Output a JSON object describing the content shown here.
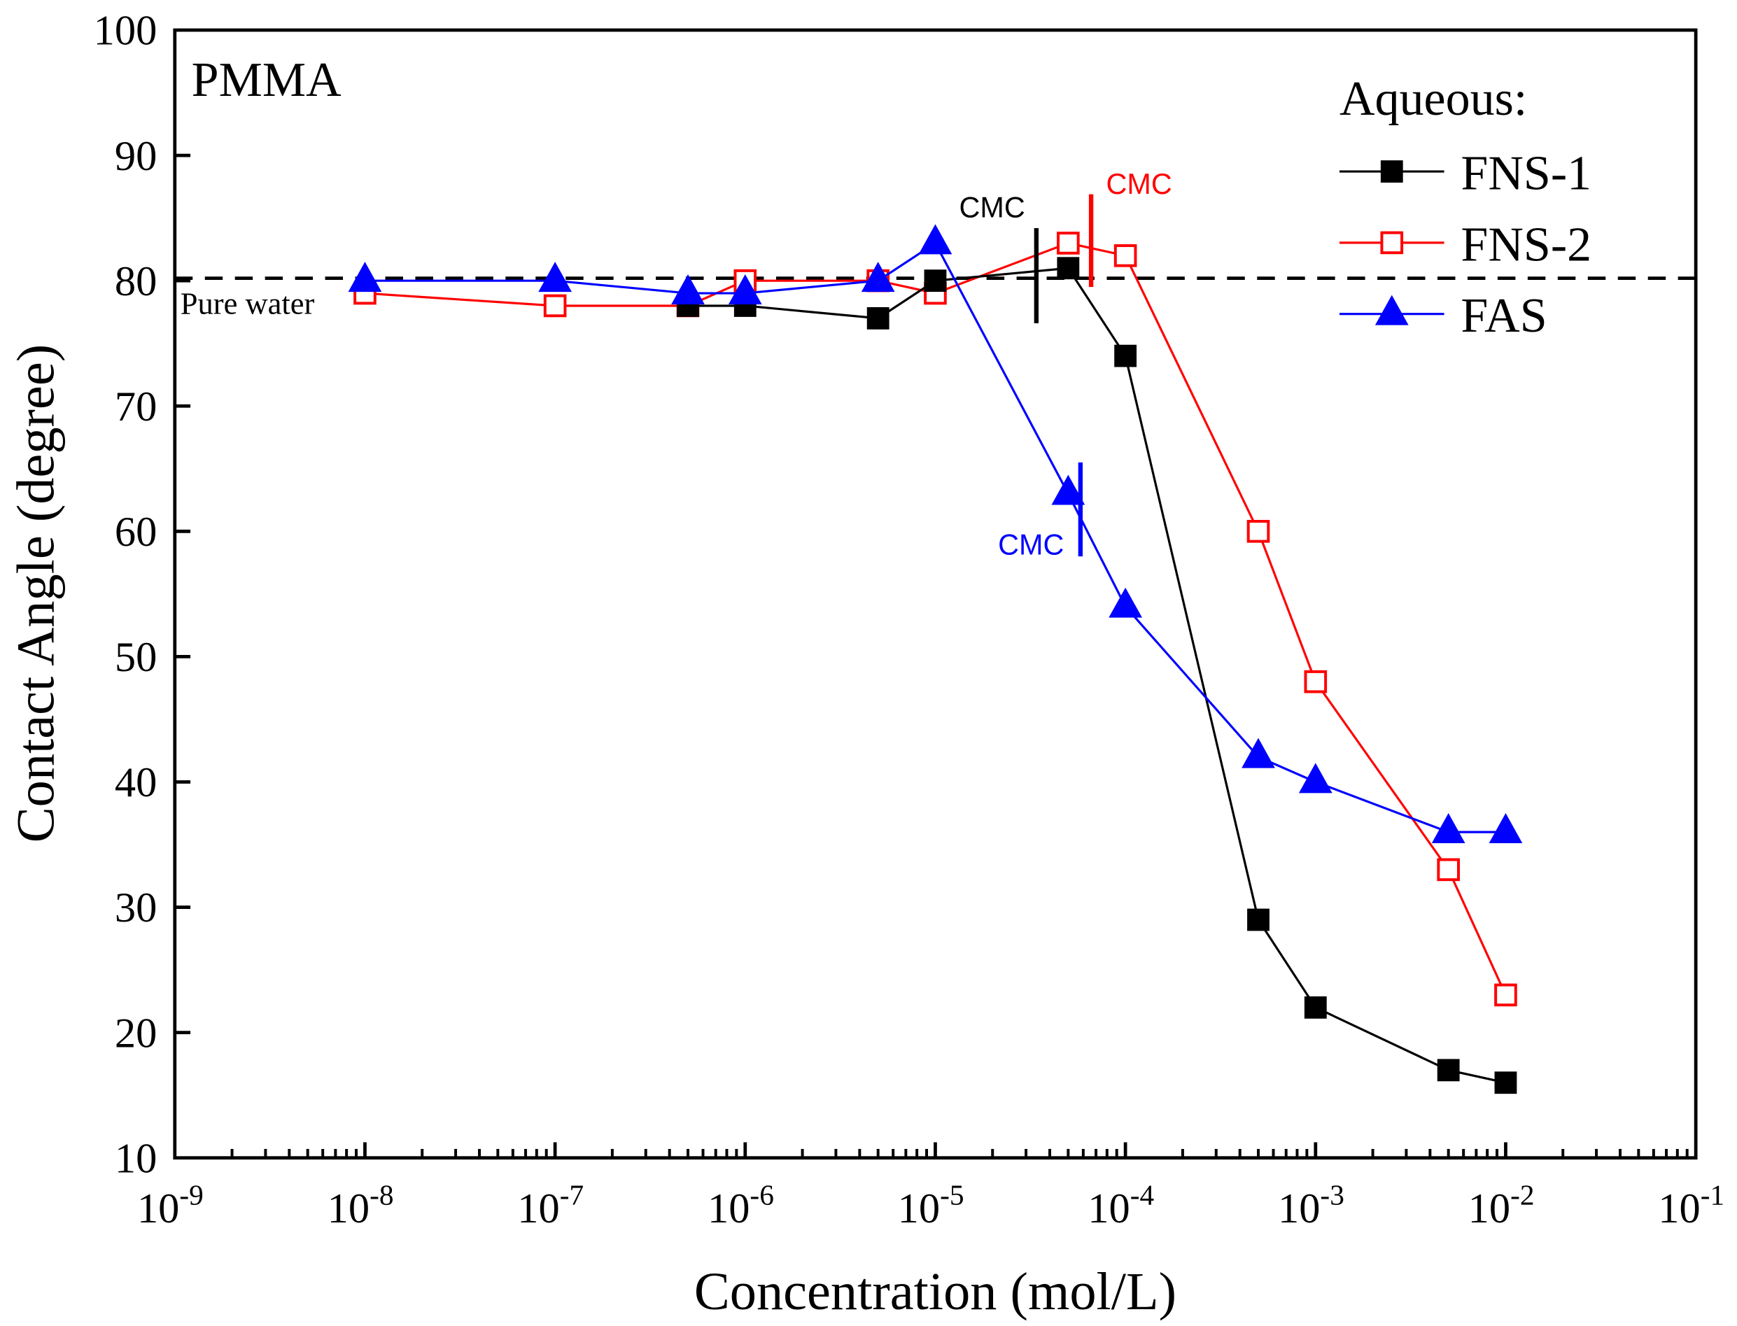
{
  "chart_data": {
    "type": "line",
    "title": "",
    "panel_label": "PMMA",
    "xlabel": "Concentration (mol/L)",
    "ylabel": "Contact Angle (degree)",
    "xscale": "log",
    "xlim": [
      1e-09,
      0.1
    ],
    "ylim": [
      10,
      100
    ],
    "xticks": [
      {
        "base": "10",
        "exp": "-9",
        "value": 1e-09
      },
      {
        "base": "10",
        "exp": "-8",
        "value": 1e-08
      },
      {
        "base": "10",
        "exp": "-7",
        "value": 1e-07
      },
      {
        "base": "10",
        "exp": "-6",
        "value": 1e-06
      },
      {
        "base": "10",
        "exp": "-5",
        "value": 1e-05
      },
      {
        "base": "10",
        "exp": "-4",
        "value": 0.0001
      },
      {
        "base": "10",
        "exp": "-3",
        "value": 0.001
      },
      {
        "base": "10",
        "exp": "-2",
        "value": 0.01
      },
      {
        "base": "10",
        "exp": "-1",
        "value": 0.1
      }
    ],
    "yticks": [
      "10",
      "20",
      "30",
      "40",
      "50",
      "60",
      "70",
      "80",
      "90",
      "100"
    ],
    "grid": false,
    "legend": {
      "title": "Aqueous:",
      "placement": "top-right"
    },
    "series": [
      {
        "name": "FNS-1",
        "color": "#000000",
        "marker": "filled-square",
        "x": [
          5e-07,
          1e-06,
          5e-06,
          1e-05,
          5e-05,
          0.0001,
          0.0005,
          0.001,
          0.005,
          0.01
        ],
        "y": [
          78,
          78,
          77,
          80,
          81,
          74,
          29,
          22,
          17,
          16
        ]
      },
      {
        "name": "FNS-2",
        "color": "#ff0000",
        "marker": "open-square",
        "x": [
          1e-08,
          1e-07,
          5e-07,
          1e-06,
          5e-06,
          1e-05,
          5e-05,
          0.0001,
          0.0005,
          0.001,
          0.005,
          0.01
        ],
        "y": [
          79,
          78,
          78,
          80,
          80,
          79,
          83,
          82,
          60,
          48,
          33,
          23
        ]
      },
      {
        "name": "FAS",
        "color": "#0000ff",
        "marker": "filled-triangle",
        "x": [
          1e-08,
          1e-07,
          5e-07,
          1e-06,
          5e-06,
          1e-05,
          5e-05,
          0.0001,
          0.0005,
          0.001,
          0.005,
          0.01
        ],
        "y": [
          80,
          80,
          79,
          79,
          80,
          83,
          63,
          54,
          42,
          40,
          36,
          36
        ]
      }
    ],
    "reference_line": {
      "label": "Pure water",
      "y": 80.2,
      "color": "#000000",
      "style": "dashed"
    },
    "annotations": [
      {
        "text": "CMC",
        "color": "#000000",
        "x": 3.4e-05,
        "y_range": [
          76.6,
          84.2
        ]
      },
      {
        "text": "CMC",
        "color": "#ff0000",
        "x": 6.6e-05,
        "y_range": [
          79.5,
          86.9
        ]
      },
      {
        "text": "CMC",
        "color": "#0000ff",
        "x": 5.8e-05,
        "y_range": [
          58,
          65.5
        ]
      }
    ]
  }
}
